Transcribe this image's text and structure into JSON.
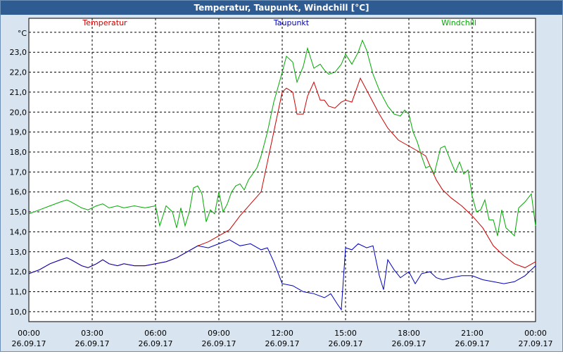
{
  "window": {
    "title": "Temperatur, Taupunkt, Windchill [°C]"
  },
  "chart_data": {
    "type": "line",
    "title": "Temperatur, Taupunkt, Windchill [°C]",
    "ylabel": "°C",
    "ylim": [
      9.5,
      24.7
    ],
    "xlim": [
      0,
      24
    ],
    "y_ticks": [
      "10,0",
      "11,0",
      "12,0",
      "13,0",
      "14,0",
      "15,0",
      "16,0",
      "17,0",
      "18,0",
      "19,0",
      "20,0",
      "21,0",
      "22,0",
      "23,0"
    ],
    "x_ticks": [
      {
        "time": "00:00",
        "date": "26.09.17"
      },
      {
        "time": "03:00",
        "date": "26.09.17"
      },
      {
        "time": "06:00",
        "date": "26.09.17"
      },
      {
        "time": "09:00",
        "date": "26.09.17"
      },
      {
        "time": "12:00",
        "date": "26.09.17"
      },
      {
        "time": "15:00",
        "date": "26.09.17"
      },
      {
        "time": "18:00",
        "date": "26.09.17"
      },
      {
        "time": "21:00",
        "date": "26.09.17"
      },
      {
        "time": "00:00",
        "date": "27.09.17"
      }
    ],
    "series": [
      {
        "name": "Temperatur",
        "color": "#cc0000",
        "points": [
          [
            0,
            11.9
          ],
          [
            0.5,
            12.1
          ],
          [
            1,
            12.4
          ],
          [
            1.5,
            12.6
          ],
          [
            1.8,
            12.7
          ],
          [
            2,
            12.6
          ],
          [
            2.5,
            12.3
          ],
          [
            2.8,
            12.2
          ],
          [
            3.2,
            12.4
          ],
          [
            3.5,
            12.6
          ],
          [
            3.8,
            12.4
          ],
          [
            4.2,
            12.3
          ],
          [
            4.5,
            12.4
          ],
          [
            5,
            12.3
          ],
          [
            5.5,
            12.3
          ],
          [
            6,
            12.4
          ],
          [
            6.5,
            12.5
          ],
          [
            7,
            12.7
          ],
          [
            7.5,
            13.0
          ],
          [
            8,
            13.3
          ],
          [
            8.5,
            13.5
          ],
          [
            9,
            13.8
          ],
          [
            9.5,
            14.1
          ],
          [
            10,
            14.8
          ],
          [
            10.5,
            15.4
          ],
          [
            11,
            16.0
          ],
          [
            11.3,
            17.5
          ],
          [
            11.6,
            19.0
          ],
          [
            12,
            21.0
          ],
          [
            12.2,
            21.2
          ],
          [
            12.5,
            21.0
          ],
          [
            12.7,
            19.9
          ],
          [
            13,
            19.9
          ],
          [
            13.2,
            20.8
          ],
          [
            13.5,
            21.5
          ],
          [
            13.8,
            20.6
          ],
          [
            14,
            20.6
          ],
          [
            14.2,
            20.3
          ],
          [
            14.5,
            20.2
          ],
          [
            14.8,
            20.5
          ],
          [
            15,
            20.6
          ],
          [
            15.3,
            20.5
          ],
          [
            15.5,
            21.1
          ],
          [
            15.7,
            21.7
          ],
          [
            16,
            21.1
          ],
          [
            16.3,
            20.5
          ],
          [
            16.6,
            19.9
          ],
          [
            17,
            19.2
          ],
          [
            17.5,
            18.6
          ],
          [
            18,
            18.3
          ],
          [
            18.5,
            18.0
          ],
          [
            18.8,
            17.8
          ],
          [
            19,
            17.3
          ],
          [
            19.3,
            16.6
          ],
          [
            19.6,
            16.1
          ],
          [
            20,
            15.7
          ],
          [
            20.5,
            15.3
          ],
          [
            21,
            14.8
          ],
          [
            21.5,
            14.2
          ],
          [
            22,
            13.3
          ],
          [
            22.5,
            12.8
          ],
          [
            23,
            12.4
          ],
          [
            23.5,
            12.2
          ],
          [
            24,
            12.5
          ]
        ]
      },
      {
        "name": "Taupunkt",
        "color": "#0000bb",
        "points": [
          [
            0,
            11.9
          ],
          [
            0.5,
            12.1
          ],
          [
            1,
            12.4
          ],
          [
            1.5,
            12.6
          ],
          [
            1.8,
            12.7
          ],
          [
            2,
            12.6
          ],
          [
            2.5,
            12.3
          ],
          [
            2.8,
            12.2
          ],
          [
            3.2,
            12.4
          ],
          [
            3.5,
            12.6
          ],
          [
            3.8,
            12.4
          ],
          [
            4.2,
            12.3
          ],
          [
            4.5,
            12.4
          ],
          [
            5,
            12.3
          ],
          [
            5.5,
            12.3
          ],
          [
            6,
            12.4
          ],
          [
            6.5,
            12.5
          ],
          [
            7,
            12.7
          ],
          [
            7.5,
            13.0
          ],
          [
            8,
            13.3
          ],
          [
            8.5,
            13.2
          ],
          [
            9,
            13.4
          ],
          [
            9.5,
            13.6
          ],
          [
            10,
            13.3
          ],
          [
            10.5,
            13.4
          ],
          [
            11,
            13.1
          ],
          [
            11.3,
            13.2
          ],
          [
            11.6,
            12.5
          ],
          [
            12,
            11.4
          ],
          [
            12.5,
            11.3
          ],
          [
            13,
            11.0
          ],
          [
            13.5,
            10.9
          ],
          [
            14,
            10.7
          ],
          [
            14.3,
            10.9
          ],
          [
            14.6,
            10.4
          ],
          [
            14.8,
            10.1
          ],
          [
            15,
            13.2
          ],
          [
            15.3,
            13.1
          ],
          [
            15.6,
            13.4
          ],
          [
            16,
            13.2
          ],
          [
            16.3,
            13.3
          ],
          [
            16.6,
            11.8
          ],
          [
            16.8,
            11.1
          ],
          [
            17,
            12.6
          ],
          [
            17.3,
            12.1
          ],
          [
            17.6,
            11.7
          ],
          [
            18,
            12.0
          ],
          [
            18.3,
            11.4
          ],
          [
            18.6,
            11.9
          ],
          [
            19,
            12.0
          ],
          [
            19.3,
            11.7
          ],
          [
            19.6,
            11.6
          ],
          [
            20,
            11.7
          ],
          [
            20.5,
            11.8
          ],
          [
            21,
            11.8
          ],
          [
            21.5,
            11.6
          ],
          [
            22,
            11.5
          ],
          [
            22.5,
            11.4
          ],
          [
            23,
            11.5
          ],
          [
            23.5,
            11.8
          ],
          [
            24,
            12.3
          ]
        ]
      },
      {
        "name": "Windchill",
        "color": "#00aa00",
        "points": [
          [
            0,
            14.9
          ],
          [
            0.5,
            15.1
          ],
          [
            1,
            15.3
          ],
          [
            1.5,
            15.5
          ],
          [
            1.8,
            15.6
          ],
          [
            2,
            15.5
          ],
          [
            2.5,
            15.2
          ],
          [
            2.8,
            15.1
          ],
          [
            3.2,
            15.3
          ],
          [
            3.5,
            15.4
          ],
          [
            3.8,
            15.2
          ],
          [
            4.2,
            15.3
          ],
          [
            4.5,
            15.2
          ],
          [
            5,
            15.3
          ],
          [
            5.5,
            15.2
          ],
          [
            6,
            15.3
          ],
          [
            6.2,
            14.3
          ],
          [
            6.5,
            15.3
          ],
          [
            6.8,
            15.0
          ],
          [
            7,
            14.2
          ],
          [
            7.2,
            15.2
          ],
          [
            7.4,
            14.3
          ],
          [
            7.6,
            15.0
          ],
          [
            7.8,
            16.2
          ],
          [
            8,
            16.3
          ],
          [
            8.2,
            15.9
          ],
          [
            8.4,
            14.5
          ],
          [
            8.6,
            15.1
          ],
          [
            8.8,
            14.9
          ],
          [
            9,
            16.0
          ],
          [
            9.2,
            15.0
          ],
          [
            9.4,
            15.4
          ],
          [
            9.6,
            16.0
          ],
          [
            9.8,
            16.3
          ],
          [
            10,
            16.4
          ],
          [
            10.2,
            16.1
          ],
          [
            10.4,
            16.6
          ],
          [
            10.6,
            16.9
          ],
          [
            10.8,
            17.2
          ],
          [
            11,
            17.8
          ],
          [
            11.3,
            19.0
          ],
          [
            11.6,
            20.5
          ],
          [
            12,
            22.0
          ],
          [
            12.2,
            22.8
          ],
          [
            12.5,
            22.5
          ],
          [
            12.7,
            21.5
          ],
          [
            13,
            22.3
          ],
          [
            13.2,
            23.2
          ],
          [
            13.5,
            22.2
          ],
          [
            13.8,
            22.4
          ],
          [
            14,
            22.1
          ],
          [
            14.2,
            21.9
          ],
          [
            14.5,
            22.0
          ],
          [
            14.8,
            22.4
          ],
          [
            15,
            22.9
          ],
          [
            15.3,
            22.4
          ],
          [
            15.6,
            23.0
          ],
          [
            15.8,
            23.6
          ],
          [
            16,
            23.1
          ],
          [
            16.3,
            21.9
          ],
          [
            16.6,
            21.1
          ],
          [
            17,
            20.3
          ],
          [
            17.3,
            19.9
          ],
          [
            17.6,
            19.8
          ],
          [
            17.8,
            20.1
          ],
          [
            18,
            19.9
          ],
          [
            18.2,
            19.0
          ],
          [
            18.4,
            18.5
          ],
          [
            18.6,
            17.8
          ],
          [
            18.8,
            17.2
          ],
          [
            19,
            17.3
          ],
          [
            19.2,
            16.9
          ],
          [
            19.5,
            18.2
          ],
          [
            19.7,
            18.3
          ],
          [
            20,
            17.5
          ],
          [
            20.2,
            17.0
          ],
          [
            20.4,
            17.5
          ],
          [
            20.6,
            16.9
          ],
          [
            20.8,
            17.1
          ],
          [
            21,
            15.8
          ],
          [
            21.2,
            15.0
          ],
          [
            21.4,
            15.1
          ],
          [
            21.6,
            15.6
          ],
          [
            21.8,
            14.6
          ],
          [
            22,
            14.6
          ],
          [
            22.2,
            13.8
          ],
          [
            22.4,
            15.1
          ],
          [
            22.6,
            14.2
          ],
          [
            22.8,
            14.0
          ],
          [
            23,
            13.8
          ],
          [
            23.2,
            15.2
          ],
          [
            23.5,
            15.5
          ],
          [
            23.8,
            15.9
          ],
          [
            24,
            14.3
          ]
        ]
      }
    ]
  }
}
